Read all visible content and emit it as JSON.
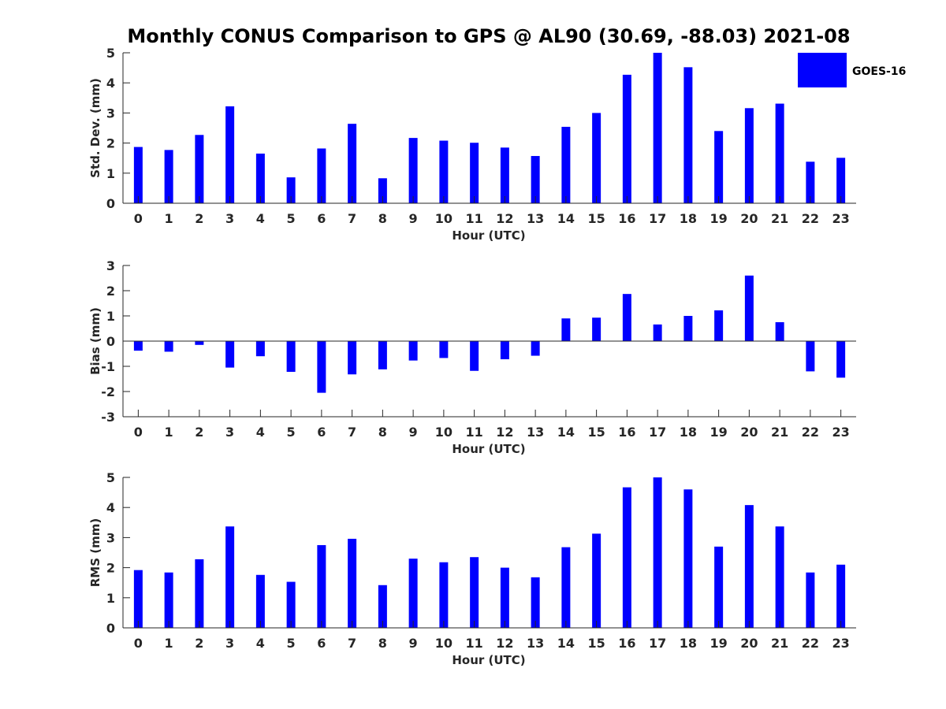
{
  "title": "Monthly CONUS Comparison to GPS @ AL90 (30.69, -88.03) 2021-08",
  "legend": {
    "label": "GOES-16",
    "position": "top-right"
  },
  "colors": {
    "bar": "#0000ff",
    "axis": "#262626"
  },
  "chart_data": [
    {
      "type": "bar",
      "xlabel": "Hour (UTC)",
      "ylabel": "Std. Dev. (mm)",
      "ylim": [
        0,
        5
      ],
      "yticks": [
        0,
        1,
        2,
        3,
        4,
        5
      ],
      "categories": [
        0,
        1,
        2,
        3,
        4,
        5,
        6,
        7,
        8,
        9,
        10,
        11,
        12,
        13,
        14,
        15,
        16,
        17,
        18,
        19,
        20,
        21,
        22,
        23
      ],
      "series": [
        {
          "name": "GOES-16",
          "values": [
            1.87,
            1.77,
            2.27,
            3.22,
            1.65,
            0.86,
            1.82,
            2.64,
            0.83,
            2.17,
            2.08,
            2.01,
            1.85,
            1.57,
            2.54,
            3.0,
            4.27,
            5.0,
            4.52,
            2.4,
            3.16,
            3.31,
            1.38,
            1.51
          ]
        }
      ]
    },
    {
      "type": "bar",
      "xlabel": "Hour (UTC)",
      "ylabel": "Bias (mm)",
      "ylim": [
        -3,
        3
      ],
      "yticks": [
        -3,
        -2,
        -1,
        0,
        1,
        2,
        3
      ],
      "categories": [
        0,
        1,
        2,
        3,
        4,
        5,
        6,
        7,
        8,
        9,
        10,
        11,
        12,
        13,
        14,
        15,
        16,
        17,
        18,
        19,
        20,
        21,
        22,
        23
      ],
      "series": [
        {
          "name": "GOES-16",
          "values": [
            -0.38,
            -0.42,
            -0.15,
            -1.05,
            -0.6,
            -1.22,
            -2.05,
            -1.32,
            -1.12,
            -0.77,
            -0.67,
            -1.18,
            -0.72,
            -0.58,
            0.9,
            0.93,
            1.87,
            0.66,
            1.0,
            1.22,
            2.6,
            0.75,
            -1.2,
            -1.45
          ]
        }
      ]
    },
    {
      "type": "bar",
      "xlabel": "Hour (UTC)",
      "ylabel": "RMS (mm)",
      "ylim": [
        0,
        5
      ],
      "yticks": [
        0,
        1,
        2,
        3,
        4,
        5
      ],
      "categories": [
        0,
        1,
        2,
        3,
        4,
        5,
        6,
        7,
        8,
        9,
        10,
        11,
        12,
        13,
        14,
        15,
        16,
        17,
        18,
        19,
        20,
        21,
        22,
        23
      ],
      "series": [
        {
          "name": "GOES-16",
          "values": [
            1.92,
            1.84,
            2.28,
            3.37,
            1.76,
            1.53,
            2.75,
            2.96,
            1.42,
            2.3,
            2.18,
            2.35,
            2.0,
            1.68,
            2.68,
            3.13,
            4.67,
            5.0,
            4.6,
            2.7,
            4.08,
            3.37,
            1.84,
            2.1
          ]
        }
      ]
    }
  ]
}
